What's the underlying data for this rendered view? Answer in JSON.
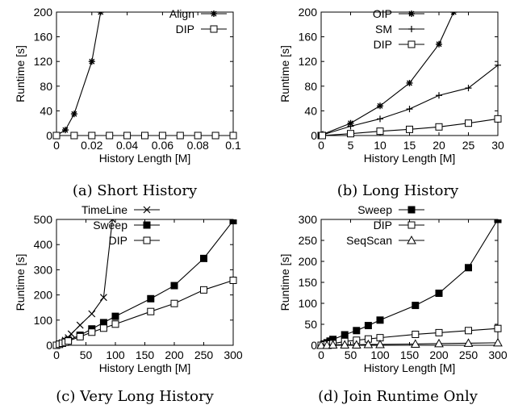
{
  "chart_data": [
    {
      "type": "line",
      "caption": "(a) Short History",
      "xlabel": "History Length [M]",
      "ylabel": "Runtime [s]",
      "xlim": [
        0,
        0.1
      ],
      "ylim": [
        0,
        200
      ],
      "xticks": [
        "0",
        "0.02",
        "0.04",
        "0.06",
        "0.08",
        "0.1"
      ],
      "yticks": [
        "0",
        "40",
        "80",
        "120",
        "160",
        "200"
      ],
      "legend_position": "top-right",
      "series": [
        {
          "name": "Align",
          "marker": "star",
          "x": [
            0,
            0.005,
            0.01,
            0.02,
            0.025
          ],
          "y": [
            0,
            9,
            35,
            120,
            200
          ]
        },
        {
          "name": "DIP",
          "marker": "square-open",
          "x": [
            0,
            0.01,
            0.02,
            0.03,
            0.04,
            0.05,
            0.06,
            0.07,
            0.08,
            0.09,
            0.1
          ],
          "y": [
            0,
            0,
            0,
            0,
            0,
            0,
            0,
            0,
            0,
            0,
            0
          ]
        }
      ]
    },
    {
      "type": "line",
      "caption": "(b) Long History",
      "xlabel": "History Length [M]",
      "ylabel": "Runtime [s]",
      "xlim": [
        0,
        30
      ],
      "ylim": [
        0,
        200
      ],
      "xticks": [
        "0",
        "5",
        "10",
        "15",
        "20",
        "25",
        "30"
      ],
      "yticks": [
        "0",
        "40",
        "80",
        "120",
        "160",
        "200"
      ],
      "legend_position": "top-left",
      "series": [
        {
          "name": "OIP",
          "marker": "star",
          "x": [
            0,
            0.1,
            0.2,
            0.3,
            5,
            10,
            15,
            20,
            22.5
          ],
          "y": [
            0,
            1,
            1,
            2,
            20,
            48,
            85,
            148,
            200
          ]
        },
        {
          "name": "SM",
          "marker": "plus",
          "x": [
            0,
            0.1,
            0.2,
            5,
            10,
            15,
            20,
            25,
            30
          ],
          "y": [
            0,
            1,
            1,
            15,
            27,
            43,
            65,
            77,
            114
          ]
        },
        {
          "name": "DIP",
          "marker": "square-open",
          "x": [
            0,
            0.1,
            0.2,
            5,
            10,
            15,
            20,
            25,
            30
          ],
          "y": [
            0,
            0,
            0,
            3,
            7,
            10,
            14,
            20,
            27
          ]
        }
      ]
    },
    {
      "type": "line",
      "caption": "(c) Very Long History",
      "xlabel": "History Length [M]",
      "ylabel": "Runtime [s]",
      "xlim": [
        0,
        300
      ],
      "ylim": [
        0,
        500
      ],
      "xticks": [
        "0",
        "50",
        "100",
        "150",
        "200",
        "250",
        "300"
      ],
      "yticks": [
        "0",
        "100",
        "200",
        "300",
        "400",
        "500"
      ],
      "legend_position": "top-left",
      "series": [
        {
          "name": "TimeLine",
          "marker": "x",
          "x": [
            0,
            5,
            10,
            15,
            20,
            25,
            40,
            60,
            80,
            95
          ],
          "y": [
            0,
            5,
            10,
            20,
            30,
            45,
            80,
            125,
            190,
            500
          ]
        },
        {
          "name": "Sweep",
          "marker": "square-filled",
          "x": [
            0,
            5,
            10,
            15,
            20,
            40,
            60,
            80,
            100,
            160,
            200,
            250,
            300
          ],
          "y": [
            0,
            4,
            8,
            14,
            20,
            40,
            65,
            90,
            115,
            185,
            237,
            345,
            495
          ]
        },
        {
          "name": "DIP",
          "marker": "square-open",
          "x": [
            0,
            5,
            10,
            15,
            20,
            40,
            60,
            80,
            100,
            160,
            200,
            250,
            300
          ],
          "y": [
            0,
            4,
            8,
            12,
            17,
            34,
            52,
            68,
            84,
            134,
            166,
            220,
            258
          ]
        }
      ]
    },
    {
      "type": "line",
      "caption": "(d) Join Runtime Only",
      "xlabel": "History Length [M]",
      "ylabel": "Runtime [s]",
      "xlim": [
        0,
        300
      ],
      "ylim": [
        0,
        300
      ],
      "xticks": [
        "0",
        "50",
        "100",
        "150",
        "200",
        "250",
        "300"
      ],
      "yticks": [
        "0",
        "50",
        "100",
        "150",
        "200",
        "250",
        "300"
      ],
      "legend_position": "top-left",
      "series": [
        {
          "name": "Sweep",
          "marker": "square-filled",
          "x": [
            0,
            5,
            10,
            15,
            20,
            40,
            60,
            80,
            100,
            160,
            200,
            250,
            300
          ],
          "y": [
            0,
            3,
            6,
            10,
            14,
            25,
            35,
            47,
            60,
            95,
            124,
            185,
            300
          ]
        },
        {
          "name": "DIP",
          "marker": "square-open",
          "x": [
            0,
            5,
            10,
            15,
            20,
            40,
            60,
            80,
            100,
            160,
            200,
            250,
            300
          ],
          "y": [
            0,
            1,
            2,
            3,
            4,
            9,
            12,
            15,
            18,
            26,
            30,
            35,
            40
          ]
        },
        {
          "name": "SeqScan",
          "marker": "triangle-open",
          "x": [
            0,
            10,
            20,
            40,
            60,
            80,
            100,
            160,
            200,
            250,
            300
          ],
          "y": [
            0,
            0,
            1,
            1,
            1,
            2,
            2,
            3,
            4,
            5,
            6
          ]
        }
      ]
    }
  ]
}
